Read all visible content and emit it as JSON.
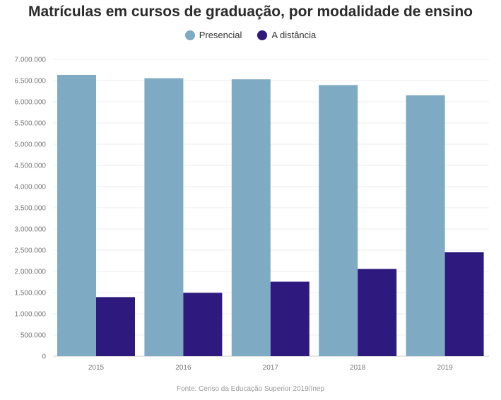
{
  "chart_data": {
    "type": "bar",
    "title": "Matrículas em cursos de graduação, por modalidade de ensino",
    "categories": [
      "2015",
      "2016",
      "2017",
      "2018",
      "2019"
    ],
    "series": [
      {
        "name": "Presencial",
        "color": "#7eaac4",
        "values": [
          6633545,
          6554283,
          6529681,
          6394244,
          6153560
        ]
      },
      {
        "name": "A distância",
        "color": "#2e1a7e",
        "values": [
          1393752,
          1494418,
          1756982,
          2056511,
          2450264
        ]
      }
    ],
    "yticks": [
      0,
      500000,
      1000000,
      1500000,
      2000000,
      2500000,
      3000000,
      3500000,
      4000000,
      4500000,
      5000000,
      5500000,
      6000000,
      6500000,
      7000000
    ],
    "ytick_labels": [
      "0",
      "500.000",
      "1.000.000",
      "1.500.000",
      "2.000.000",
      "2.500.000",
      "3.000.000",
      "3.500.000",
      "4.000.000",
      "4.500.000",
      "5.000.000",
      "5.500.000",
      "6.000.000",
      "6.500.000",
      "7.000.000"
    ],
    "ylim": [
      0,
      7000000
    ],
    "grid": true,
    "legend_position": "top-center",
    "xlabel": "",
    "ylabel": "",
    "source": "Fonte: Censo da Educação Superior 2019/Inep"
  }
}
